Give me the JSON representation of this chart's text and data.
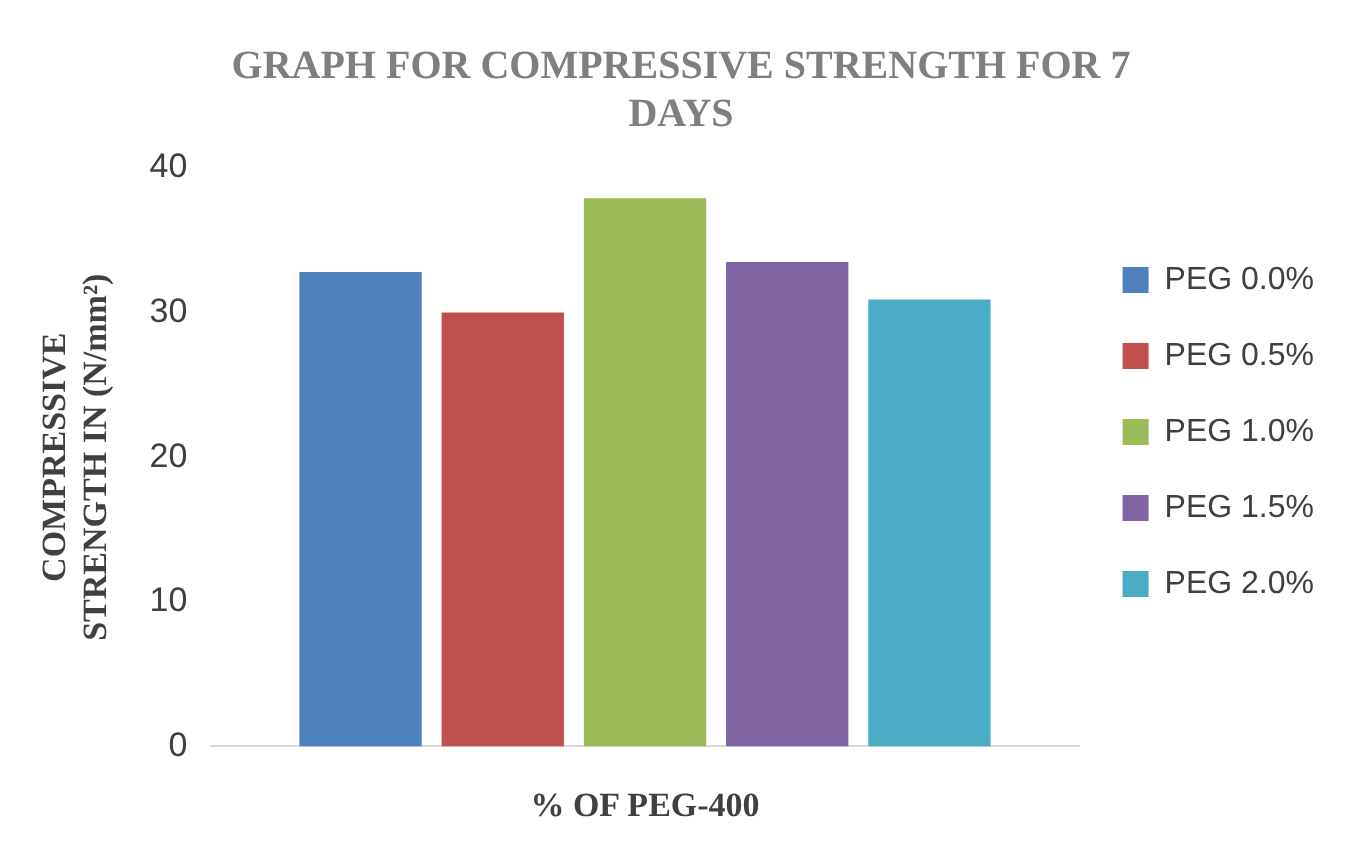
{
  "chart_data": {
    "type": "bar",
    "title": "GRAPH FOR COMPRESSIVE STRENGTH FOR 7 DAYS",
    "xlabel": "% OF PEG-400",
    "ylabel": "COMPRESSIVE STRENGTH IN (N/mm²)",
    "categories": [
      null
    ],
    "series": [
      {
        "name": "PEG 0.0%",
        "color": "#4f81bd",
        "values": [
          32.8
        ]
      },
      {
        "name": "PEG 0.5%",
        "color": "#c0504d",
        "values": [
          30
        ]
      },
      {
        "name": "PEG 1.0%",
        "color": "#9bbb59",
        "values": [
          37.9
        ]
      },
      {
        "name": "PEG 1.5%",
        "color": "#8064a2",
        "values": [
          33.5
        ]
      },
      {
        "name": "PEG 2.0%",
        "color": "#4bacc6",
        "values": [
          30.9
        ]
      }
    ],
    "ylim": [
      0,
      40
    ],
    "yticks": [
      0,
      10,
      20,
      30,
      40
    ],
    "grid": false,
    "legend": "right"
  }
}
